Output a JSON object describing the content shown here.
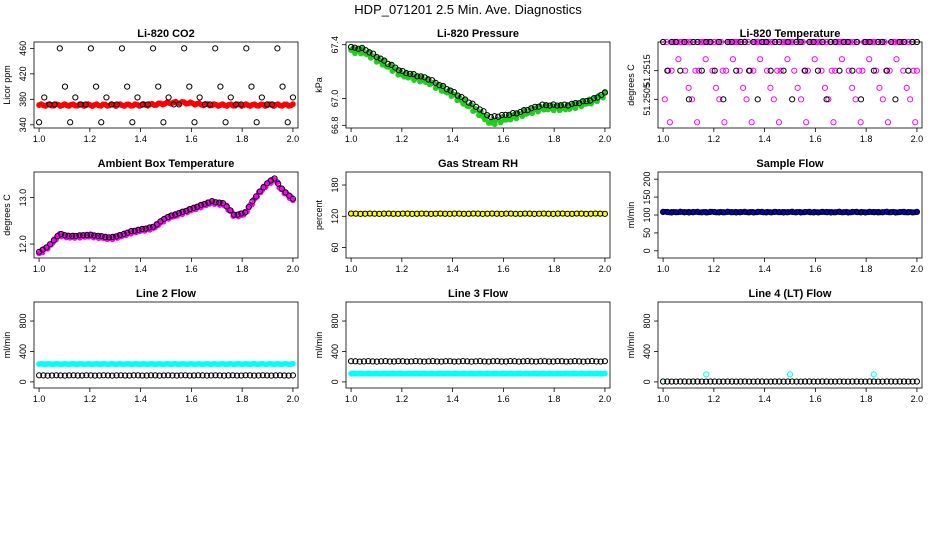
{
  "page_title": "HDP_071201  2.5 Min. Ave. Diagnostics",
  "colors": {
    "black": "#000000",
    "red": "#ff0000",
    "green": "#22cc22",
    "magenta": "#ff00ff",
    "yellow": "#ffff00",
    "blue": "#0000cc",
    "cyan": "#00ffff"
  },
  "chart_data": [
    {
      "id": "co2",
      "type": "scatter",
      "title": "Li-820 CO2",
      "ylabel": "Licor ppm",
      "xlabel": "",
      "xlim": [
        0.98,
        2.02
      ],
      "ylim": [
        335,
        470
      ],
      "xticks": [
        "1.0",
        "1.2",
        "1.4",
        "1.6",
        "1.8",
        "2.0"
      ],
      "yticks": [
        "340",
        "380",
        "420",
        "460"
      ],
      "series": [
        {
          "name": "filled",
          "color": "red",
          "style": "filled",
          "gen": "flat",
          "n": 120,
          "start": 1.0,
          "end": 2.0,
          "base": 371,
          "amp": 1.5,
          "bumps": [
            [
              1.55,
              4,
              0.08
            ]
          ]
        },
        {
          "name": "open",
          "color": "black",
          "style": "open",
          "gen": "levels",
          "n": 50,
          "start": 1.0,
          "end": 2.0,
          "levels": [
            372,
            460,
            400,
            344,
            383,
            372
          ]
        }
      ]
    },
    {
      "id": "pressure",
      "type": "scatter",
      "title": "Li-820 Pressure",
      "ylabel": "kPa",
      "xlabel": "",
      "xlim": [
        0.98,
        2.02
      ],
      "ylim": [
        66.78,
        67.42
      ],
      "xticks": [
        "1.0",
        "1.2",
        "1.4",
        "1.6",
        "1.8",
        "2.0"
      ],
      "yticks": [
        "66.8",
        "67.0",
        "67.4"
      ],
      "series": [
        {
          "name": "filled",
          "color": "green",
          "style": "filled",
          "gen": "path",
          "n": 130,
          "start": 1.0,
          "end": 2.0,
          "anchors": [
            [
              1.0,
              67.36
            ],
            [
              1.05,
              67.35
            ],
            [
              1.2,
              67.18
            ],
            [
              1.3,
              67.13
            ],
            [
              1.4,
              67.03
            ],
            [
              1.5,
              66.9
            ],
            [
              1.55,
              66.82
            ],
            [
              1.65,
              66.87
            ],
            [
              1.75,
              66.93
            ],
            [
              1.85,
              66.93
            ],
            [
              1.95,
              66.98
            ],
            [
              2.0,
              67.03
            ]
          ],
          "jitter": 0.02
        },
        {
          "name": "open",
          "color": "black",
          "style": "open",
          "gen": "path",
          "n": 70,
          "start": 1.0,
          "end": 2.0,
          "anchors": [
            [
              1.0,
              67.38
            ],
            [
              1.05,
              67.37
            ],
            [
              1.2,
              67.2
            ],
            [
              1.3,
              67.15
            ],
            [
              1.4,
              67.05
            ],
            [
              1.5,
              66.93
            ],
            [
              1.55,
              66.86
            ],
            [
              1.65,
              66.89
            ],
            [
              1.75,
              66.95
            ],
            [
              1.85,
              66.95
            ],
            [
              1.95,
              66.99
            ],
            [
              2.0,
              67.04
            ]
          ],
          "jitter": 0.005
        }
      ]
    },
    {
      "id": "temperature",
      "type": "scatter",
      "title": "Li-820 Temperature",
      "ylabel": "degrees C",
      "xlabel": "",
      "xlim": [
        0.98,
        2.02
      ],
      "ylim": [
        51.2495,
        51.2525
      ],
      "xticks": [
        "1.0",
        "1.2",
        "1.4",
        "1.6",
        "1.8",
        "2.0"
      ],
      "yticks": [
        "51.2505",
        "51.2515"
      ],
      "series": [
        {
          "name": "filled",
          "color": "magenta",
          "style": "open",
          "gen": "levels",
          "n": 150,
          "start": 1.0,
          "end": 2.0,
          "levels": [
            51.2525,
            51.2525,
            51.2525,
            51.2515,
            51.2525,
            51.2515,
            51.2525,
            51.2505,
            51.2525,
            51.2509,
            51.2525,
            51.2515,
            51.2497,
            51.2525,
            51.2525,
            51.2519
          ]
        },
        {
          "name": "open",
          "color": "black",
          "style": "open",
          "gen": "levels",
          "n": 60,
          "start": 1.0,
          "end": 2.0,
          "levels": [
            51.2525,
            51.2525,
            51.2515,
            51.2525,
            51.2525,
            51.2505,
            51.2525,
            51.2515
          ]
        }
      ]
    },
    {
      "id": "ambient",
      "type": "scatter",
      "title": "Ambient Box Temperature",
      "ylabel": "degrees C",
      "xlabel": "",
      "xlim": [
        0.98,
        2.02
      ],
      "ylim": [
        11.7,
        13.55
      ],
      "xticks": [
        "1.0",
        "1.2",
        "1.4",
        "1.6",
        "1.8",
        "2.0"
      ],
      "yticks": [
        "12.0",
        "13.0"
      ],
      "series": [
        {
          "name": "filled",
          "color": "magenta",
          "style": "filled",
          "gen": "path",
          "n": 150,
          "start": 1.0,
          "end": 2.0,
          "anchors": [
            [
              1.0,
              11.8
            ],
            [
              1.04,
              11.95
            ],
            [
              1.08,
              12.2
            ],
            [
              1.12,
              12.15
            ],
            [
              1.2,
              12.18
            ],
            [
              1.28,
              12.12
            ],
            [
              1.32,
              12.17
            ],
            [
              1.36,
              12.25
            ],
            [
              1.45,
              12.35
            ],
            [
              1.5,
              12.55
            ],
            [
              1.58,
              12.7
            ],
            [
              1.63,
              12.8
            ],
            [
              1.68,
              12.9
            ],
            [
              1.73,
              12.85
            ],
            [
              1.77,
              12.6
            ],
            [
              1.81,
              12.65
            ],
            [
              1.86,
              13.05
            ],
            [
              1.9,
              13.3
            ],
            [
              1.93,
              13.4
            ],
            [
              1.95,
              13.2
            ],
            [
              2.0,
              12.95
            ]
          ],
          "jitter": 0.03
        },
        {
          "name": "open",
          "color": "black",
          "style": "open",
          "gen": "path",
          "n": 70,
          "start": 1.0,
          "end": 2.0,
          "anchors": [
            [
              1.0,
              11.83
            ],
            [
              1.04,
              11.97
            ],
            [
              1.08,
              12.22
            ],
            [
              1.12,
              12.17
            ],
            [
              1.2,
              12.2
            ],
            [
              1.28,
              12.14
            ],
            [
              1.32,
              12.19
            ],
            [
              1.36,
              12.27
            ],
            [
              1.45,
              12.37
            ],
            [
              1.5,
              12.57
            ],
            [
              1.58,
              12.72
            ],
            [
              1.63,
              12.82
            ],
            [
              1.68,
              12.92
            ],
            [
              1.73,
              12.87
            ],
            [
              1.77,
              12.62
            ],
            [
              1.81,
              12.67
            ],
            [
              1.86,
              13.07
            ],
            [
              1.9,
              13.32
            ],
            [
              1.93,
              13.42
            ],
            [
              1.95,
              13.22
            ],
            [
              2.0,
              12.97
            ]
          ],
          "jitter": 0.005
        }
      ]
    },
    {
      "id": "rh",
      "type": "scatter",
      "title": "Gas Stream RH",
      "ylabel": "percent",
      "xlabel": "",
      "xlim": [
        0.98,
        2.02
      ],
      "ylim": [
        40,
        205
      ],
      "xticks": [
        "1.0",
        "1.2",
        "1.4",
        "1.6",
        "1.8",
        "2.0"
      ],
      "yticks": [
        "60",
        "120",
        "180"
      ],
      "series": [
        {
          "name": "filled",
          "color": "yellow",
          "style": "filled",
          "gen": "flat",
          "n": 110,
          "start": 1.0,
          "end": 2.0,
          "base": 125,
          "amp": 0.5,
          "bumps": []
        },
        {
          "name": "open",
          "color": "black",
          "style": "open",
          "gen": "flat",
          "n": 55,
          "start": 1.0,
          "end": 2.0,
          "base": 125,
          "amp": 0.3,
          "bumps": []
        }
      ]
    },
    {
      "id": "sample_flow",
      "type": "scatter",
      "title": "Sample Flow",
      "ylabel": "ml/min",
      "xlabel": "",
      "xlim": [
        0.98,
        2.02
      ],
      "ylim": [
        -20,
        220
      ],
      "xticks": [
        "1.0",
        "1.2",
        "1.4",
        "1.6",
        "1.8",
        "2.0"
      ],
      "yticks": [
        "0",
        "50",
        "100",
        "150",
        "200"
      ],
      "series": [
        {
          "name": "filled",
          "color": "blue",
          "style": "filled",
          "gen": "flat",
          "n": 120,
          "start": 1.0,
          "end": 2.0,
          "base": 108,
          "amp": 1,
          "bumps": []
        },
        {
          "name": "open",
          "color": "black",
          "style": "open",
          "gen": "flat",
          "n": 60,
          "start": 1.0,
          "end": 2.0,
          "base": 108,
          "amp": 1,
          "bumps": []
        }
      ]
    },
    {
      "id": "line2",
      "type": "scatter",
      "title": "Line 2 Flow",
      "ylabel": "ml/min",
      "xlabel": "",
      "xlim": [
        0.98,
        2.02
      ],
      "ylim": [
        -80,
        1050
      ],
      "xticks": [
        "1.0",
        "1.2",
        "1.4",
        "1.6",
        "1.8",
        "2.0"
      ],
      "yticks": [
        "0",
        "400",
        "800"
      ],
      "series": [
        {
          "name": "filled",
          "color": "cyan",
          "style": "filled",
          "gen": "flat",
          "n": 120,
          "start": 1.0,
          "end": 2.0,
          "base": 235,
          "amp": 3,
          "bumps": []
        },
        {
          "name": "open",
          "color": "black",
          "style": "open",
          "gen": "flat",
          "n": 60,
          "start": 1.0,
          "end": 2.0,
          "base": 85,
          "amp": 2,
          "bumps": []
        }
      ]
    },
    {
      "id": "line3",
      "type": "scatter",
      "title": "Line 3 Flow",
      "ylabel": "ml/min",
      "xlabel": "",
      "xlim": [
        0.98,
        2.02
      ],
      "ylim": [
        -80,
        1050
      ],
      "xticks": [
        "1.0",
        "1.2",
        "1.4",
        "1.6",
        "1.8",
        "2.0"
      ],
      "yticks": [
        "0",
        "400",
        "800"
      ],
      "series": [
        {
          "name": "filled",
          "color": "cyan",
          "style": "filled",
          "gen": "flat",
          "n": 120,
          "start": 1.0,
          "end": 2.0,
          "base": 110,
          "amp": 2,
          "bumps": []
        },
        {
          "name": "open",
          "color": "black",
          "style": "open",
          "gen": "flat",
          "n": 60,
          "start": 1.0,
          "end": 2.0,
          "base": 270,
          "amp": 3,
          "bumps": []
        }
      ]
    },
    {
      "id": "line4",
      "type": "scatter",
      "title": "Line 4 (LT) Flow",
      "ylabel": "ml/min",
      "xlabel": "",
      "xlim": [
        0.98,
        2.02
      ],
      "ylim": [
        -80,
        1050
      ],
      "xticks": [
        "1.0",
        "1.2",
        "1.4",
        "1.6",
        "1.8",
        "2.0"
      ],
      "yticks": [
        "0",
        "400",
        "800"
      ],
      "series": [
        {
          "name": "filled",
          "color": "cyan",
          "style": "open",
          "gen": "points",
          "x": [
            1.0,
            1.17,
            1.5,
            1.83
          ],
          "y": [
            5,
            100,
            100,
            100
          ]
        },
        {
          "name": "open",
          "color": "black",
          "style": "open",
          "gen": "flat",
          "n": 60,
          "start": 1.0,
          "end": 2.0,
          "base": 5,
          "amp": 0.5,
          "bumps": []
        }
      ]
    }
  ]
}
